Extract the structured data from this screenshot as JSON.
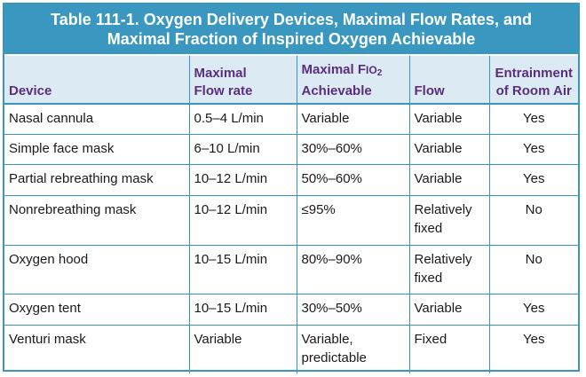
{
  "title": {
    "line1": "Table 111-1. Oxygen Delivery Devices, Maximal Flow Rates, and",
    "line2": "Maximal Fraction of Inspired Oxygen Achievable"
  },
  "headers": {
    "device": "Device",
    "flow_rate_1": "Maximal",
    "flow_rate_2": "Flow rate",
    "fio2_1_prefix": "Maximal F",
    "fio2_1_io": "IO",
    "fio2_1_sub": "2",
    "fio2_2": "Achievable",
    "flow": "Flow",
    "entrainment_1": "Entrainment",
    "entrainment_2": "of Room Air"
  },
  "rows": [
    {
      "device": "Nasal cannula",
      "flow_rate": "0.5–4 L/min",
      "fio2": "Variable",
      "flow": "Variable",
      "entrainment": "Yes"
    },
    {
      "device": "Simple face mask",
      "flow_rate": "6–10 L/min",
      "fio2": "30%–60%",
      "flow": "Variable",
      "entrainment": "Yes"
    },
    {
      "device": "Partial rebreathing mask",
      "flow_rate": "10–12 L/min",
      "fio2": "50%–60%",
      "flow": "Variable",
      "entrainment": "Yes"
    },
    {
      "device": "Nonrebreathing mask",
      "flow_rate": "10–12 L/min",
      "fio2": "≤95%",
      "flow_1": "Relatively",
      "flow_2": "fixed",
      "entrainment": "No"
    },
    {
      "device": "Oxygen hood",
      "flow_rate": "10–15 L/min",
      "fio2": "80%–90%",
      "flow_1": "Relatively",
      "flow_2": "fixed",
      "entrainment": "No"
    },
    {
      "device": "Oxygen tent",
      "flow_rate": "10–15 L/min",
      "fio2": "30%–50%",
      "flow": "Variable",
      "entrainment": "Yes"
    },
    {
      "device": "Venturi mask",
      "flow_rate": "Variable",
      "fio2_1": "Variable,",
      "fio2_2": "predictable",
      "flow": "Fixed",
      "entrainment": "Yes"
    }
  ],
  "colors": {
    "accent": "#3a98c0",
    "header_bg": "#dcebf3",
    "header_text": "#5a2d7e"
  }
}
